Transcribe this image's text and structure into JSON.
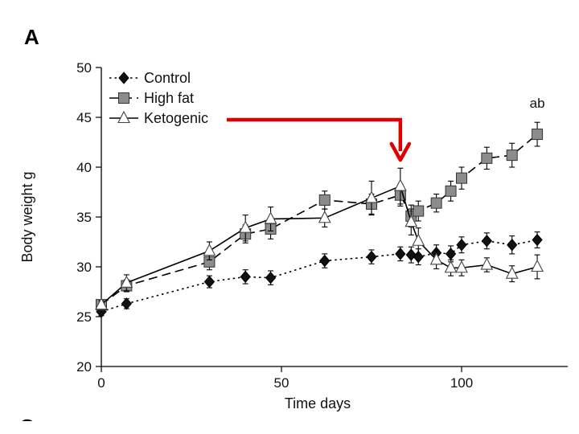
{
  "panel_label": "A",
  "next_panel_label": "C",
  "annotation": "ab",
  "chart_data": {
    "type": "line",
    "title": "",
    "xlabel": "Time days",
    "ylabel": "Body weight g",
    "xlim": [
      0,
      122
    ],
    "ylim": [
      20,
      50
    ],
    "xticks": [
      0,
      50,
      100
    ],
    "yticks": [
      20,
      25,
      30,
      35,
      40,
      45,
      50
    ],
    "grid": false,
    "legend_position": "top-left",
    "diet_switch_arrow": {
      "x": 83,
      "color": "#e00000"
    },
    "series": [
      {
        "name": "Control",
        "marker": "diamond",
        "line_style": "dotted",
        "color": "#000000",
        "fill": "#111111",
        "x": [
          0,
          7,
          30,
          40,
          47,
          62,
          75,
          83,
          86,
          88,
          93,
          97,
          100,
          107,
          114,
          121
        ],
        "y": [
          25.5,
          26.3,
          28.5,
          29.0,
          28.9,
          30.6,
          31.0,
          31.3,
          31.2,
          31.0,
          31.4,
          31.3,
          32.2,
          32.6,
          32.2,
          32.7
        ],
        "err": [
          0.4,
          0.5,
          0.6,
          0.7,
          0.7,
          0.7,
          0.7,
          0.7,
          0.8,
          0.8,
          0.8,
          0.8,
          0.8,
          0.8,
          0.9,
          0.8
        ]
      },
      {
        "name": "High fat",
        "marker": "square",
        "line_style": "dashed",
        "color": "#000000",
        "fill": "#8c8c8c",
        "x": [
          0,
          7,
          30,
          40,
          47,
          62,
          75,
          83,
          86,
          88,
          93,
          97,
          100,
          107,
          114,
          121
        ],
        "y": [
          26.2,
          28.1,
          30.5,
          33.3,
          33.8,
          36.7,
          36.3,
          37.2,
          35.1,
          35.6,
          36.4,
          37.6,
          38.9,
          40.9,
          41.2,
          43.3
        ],
        "err": [
          0.4,
          0.6,
          0.8,
          0.9,
          1.0,
          0.9,
          1.0,
          1.1,
          1.1,
          1.0,
          0.9,
          1.0,
          1.1,
          1.1,
          1.2,
          1.2
        ]
      },
      {
        "name": "Ketogenic",
        "marker": "triangle",
        "line_style": "solid",
        "color": "#000000",
        "fill": "#ffffff",
        "x": [
          0,
          7,
          30,
          40,
          47,
          62,
          75,
          83,
          86,
          88,
          93,
          97,
          100,
          107,
          114,
          121
        ],
        "y": [
          26.2,
          28.4,
          31.6,
          33.9,
          34.8,
          34.9,
          36.9,
          38.1,
          34.5,
          32.6,
          30.7,
          29.9,
          29.9,
          30.2,
          29.3,
          30.0
        ],
        "err": [
          0.4,
          0.8,
          0.9,
          1.3,
          1.2,
          0.9,
          1.7,
          1.8,
          1.3,
          1.3,
          0.9,
          0.8,
          0.8,
          0.7,
          0.8,
          1.2
        ]
      }
    ]
  }
}
